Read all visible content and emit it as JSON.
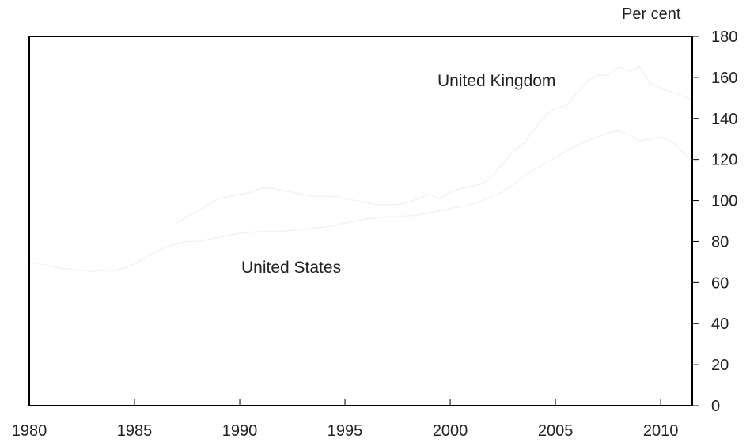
{
  "chart_data": {
    "type": "line",
    "title": "",
    "xlabel": "",
    "ylabel": "Per cent",
    "xlim": [
      1980,
      2011.5
    ],
    "ylim": [
      0,
      180
    ],
    "x_ticks": [
      1980,
      1985,
      1990,
      1995,
      2000,
      2005,
      2010
    ],
    "y_ticks": [
      0,
      20,
      40,
      60,
      80,
      100,
      120,
      140,
      160,
      180
    ],
    "y_axis_side": "right",
    "grid": false,
    "legend": "inline labels",
    "series": [
      {
        "name": "United Kingdom",
        "color": "#f2f2f2",
        "x": [
          1987.0,
          1987.5,
          1988.0,
          1988.5,
          1989.0,
          1989.5,
          1990.0,
          1990.5,
          1991.0,
          1991.5,
          1992.0,
          1992.5,
          1993.0,
          1993.5,
          1994.0,
          1994.5,
          1995.0,
          1995.5,
          1996.0,
          1996.5,
          1997.0,
          1997.5,
          1998.0,
          1998.5,
          1999.0,
          1999.5,
          2000.0,
          2000.5,
          2001.0,
          2001.5,
          2002.0,
          2002.5,
          2003.0,
          2003.5,
          2004.0,
          2004.5,
          2005.0,
          2005.5,
          2006.0,
          2006.5,
          2007.0,
          2007.5,
          2008.0,
          2008.5,
          2009.0,
          2009.5,
          2010.0,
          2010.5,
          2011.0,
          2011.5
        ],
        "values": [
          89,
          92,
          95,
          98,
          101,
          102,
          103,
          104,
          106,
          106,
          105,
          104,
          103,
          102,
          102,
          102,
          101,
          100,
          99,
          98,
          98,
          98,
          99,
          101,
          103,
          101,
          104,
          106,
          107,
          108,
          112,
          118,
          124,
          128,
          135,
          141,
          145,
          146,
          152,
          158,
          161,
          161,
          165,
          163,
          165,
          157,
          155,
          153,
          151,
          149
        ]
      },
      {
        "name": "United States",
        "color": "#f2f2f2",
        "x": [
          1980.0,
          1980.5,
          1981.0,
          1981.5,
          1982.0,
          1982.5,
          1983.0,
          1983.5,
          1984.0,
          1984.5,
          1985.0,
          1985.5,
          1986.0,
          1986.5,
          1987.0,
          1987.5,
          1988.0,
          1988.5,
          1989.0,
          1989.5,
          1990.0,
          1990.5,
          1991.0,
          1991.5,
          1992.0,
          1992.5,
          1993.0,
          1993.5,
          1994.0,
          1994.5,
          1995.0,
          1995.5,
          1996.0,
          1996.5,
          1997.0,
          1997.5,
          1998.0,
          1998.5,
          1999.0,
          1999.5,
          2000.0,
          2000.5,
          2001.0,
          2001.5,
          2002.0,
          2002.5,
          2003.0,
          2003.5,
          2004.0,
          2004.5,
          2005.0,
          2005.5,
          2006.0,
          2006.5,
          2007.0,
          2007.5,
          2008.0,
          2008.5,
          2009.0,
          2009.5,
          2010.0,
          2010.5,
          2011.0,
          2011.5
        ],
        "values": [
          70,
          69,
          68,
          67,
          66.5,
          66,
          65.5,
          66,
          66,
          67,
          69,
          72,
          75,
          77,
          79,
          80,
          80,
          81,
          82,
          83,
          84,
          84.5,
          85,
          85,
          85,
          85.5,
          86,
          86.5,
          87,
          88,
          89,
          90,
          91,
          91.5,
          92,
          92,
          92.5,
          93,
          94,
          95,
          96,
          97,
          98,
          100,
          102,
          104,
          108,
          112,
          115,
          118,
          121,
          124,
          127,
          129,
          131,
          133,
          134,
          132,
          129,
          130,
          131,
          129,
          124,
          120
        ]
      }
    ]
  }
}
